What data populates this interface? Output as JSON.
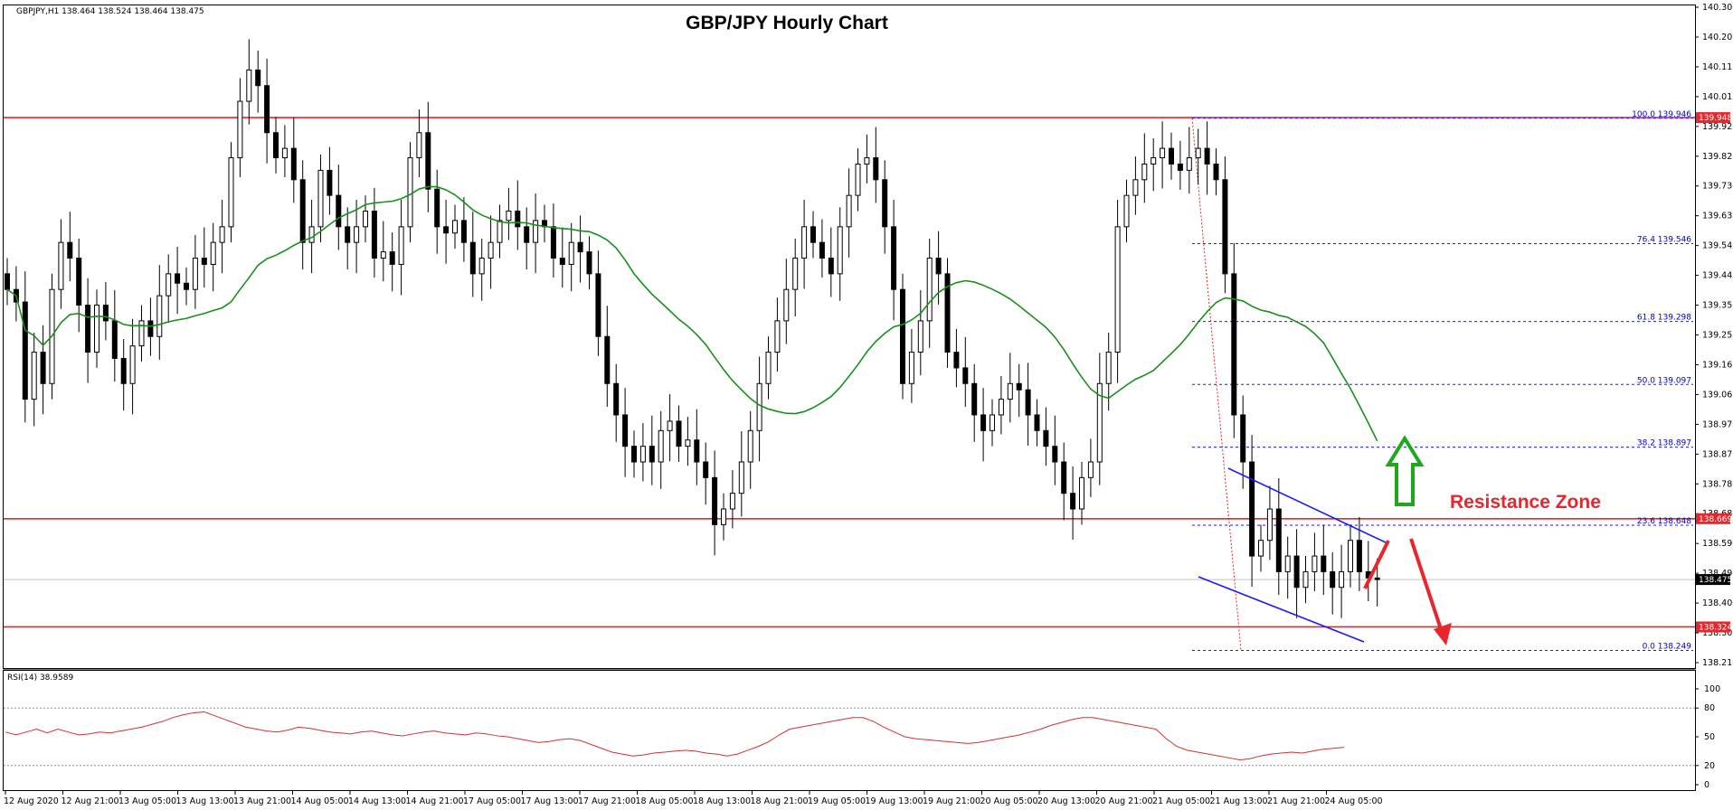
{
  "chart_data": [
    {
      "type": "candlestick",
      "symbol_line": "GBPJPY,H1  138.464 138.524 138.464 138.475",
      "title": "GBP/JPY Hourly Chart",
      "ylim": [
        138.21,
        140.3
      ],
      "y_ticks": [
        "140.300",
        "140.205",
        "140.110",
        "140.015",
        "139.920",
        "139.825",
        "139.730",
        "139.635",
        "139.540",
        "139.445",
        "139.350",
        "139.255",
        "139.160",
        "139.065",
        "138.970",
        "138.875",
        "138.780",
        "138.685",
        "138.590",
        "138.495",
        "138.400",
        "138.305",
        "138.210"
      ],
      "x_ticks": [
        "12 Aug 2020",
        "12 Aug 21:00",
        "13 Aug 05:00",
        "13 Aug 13:00",
        "13 Aug 21:00",
        "14 Aug 05:00",
        "14 Aug 13:00",
        "14 Aug 21:00",
        "17 Aug 05:00",
        "17 Aug 13:00",
        "17 Aug 21:00",
        "18 Aug 05:00",
        "18 Aug 13:00",
        "18 Aug 21:00",
        "19 Aug 05:00",
        "19 Aug 13:00",
        "19 Aug 21:00",
        "20 Aug 05:00",
        "20 Aug 13:00",
        "20 Aug 21:00",
        "21 Aug 05:00",
        "21 Aug 13:00",
        "21 Aug 21:00",
        "24 Aug 05:00"
      ],
      "current_price": "138.475",
      "horizontal_levels": [
        {
          "value": 139.948,
          "label": "139.948"
        },
        {
          "value": 138.669,
          "label": "138.669"
        },
        {
          "value": 138.324,
          "label": "138.324"
        }
      ],
      "fibonacci": [
        {
          "value": 139.946,
          "label": "100.0 139.946"
        },
        {
          "value": 139.546,
          "label": "76.4 139.546"
        },
        {
          "value": 139.298,
          "label": "61.8 139.298"
        },
        {
          "value": 139.097,
          "label": "50.0 139.097"
        },
        {
          "value": 138.897,
          "label": "38.2 138.897"
        },
        {
          "value": 138.648,
          "label": "23.6 138.648"
        },
        {
          "value": 138.249,
          "label": "0.0 138.249"
        }
      ],
      "annotations": [
        "Resistance Zone"
      ],
      "moving_average_color": "#1a8f1a",
      "candles_close": [
        139.4,
        139.36,
        139.05,
        139.2,
        139.1,
        139.4,
        139.55,
        139.5,
        139.35,
        139.2,
        139.35,
        139.3,
        139.18,
        139.1,
        139.22,
        139.3,
        139.25,
        139.38,
        139.45,
        139.42,
        139.4,
        139.5,
        139.48,
        139.55,
        139.6,
        139.82,
        140.0,
        140.1,
        140.05,
        139.9,
        139.82,
        139.85,
        139.75,
        139.55,
        139.6,
        139.78,
        139.7,
        139.6,
        139.55,
        139.6,
        139.65,
        139.5,
        139.52,
        139.48,
        139.6,
        139.82,
        139.9,
        139.72,
        139.6,
        139.58,
        139.62,
        139.55,
        139.45,
        139.5,
        139.55,
        139.62,
        139.65,
        139.6,
        139.55,
        139.62,
        139.6,
        139.5,
        139.48,
        139.55,
        139.52,
        139.45,
        139.25,
        139.1,
        139.0,
        138.9,
        138.85,
        138.9,
        138.85,
        138.95,
        138.98,
        138.9,
        138.92,
        138.85,
        138.8,
        138.65,
        138.7,
        138.75,
        138.85,
        138.95,
        139.1,
        139.2,
        139.3,
        139.4,
        139.5,
        139.6,
        139.55,
        139.5,
        139.45,
        139.6,
        139.7,
        139.8,
        139.82,
        139.75,
        139.6,
        139.4,
        139.1,
        139.2,
        139.3,
        139.5,
        139.45,
        139.2,
        139.15,
        139.1,
        139.0,
        138.95,
        139.0,
        139.05,
        139.1,
        139.08,
        139.0,
        138.95,
        138.9,
        138.85,
        138.75,
        138.7,
        138.8,
        138.85,
        139.1,
        139.2,
        139.6,
        139.7,
        139.75,
        139.8,
        139.82,
        139.85,
        139.8,
        139.78,
        139.82,
        139.85,
        139.8,
        139.75,
        139.45,
        139.0,
        138.85,
        138.55,
        138.6,
        138.7,
        138.5,
        138.55,
        138.45,
        138.5,
        138.55,
        138.5,
        138.45,
        138.5,
        138.6,
        138.5,
        138.48,
        138.475
      ],
      "rsi_label": "RSI(14) 38.9589",
      "rsi_ticks": [
        "100",
        "80",
        "50",
        "20",
        "0"
      ],
      "rsi_color": "#d23232",
      "rsi_values": [
        55,
        52,
        55,
        58,
        54,
        58,
        55,
        52,
        53,
        55,
        54,
        56,
        58,
        60,
        63,
        66,
        70,
        73,
        75,
        76,
        72,
        68,
        64,
        60,
        58,
        56,
        55,
        57,
        60,
        59,
        57,
        55,
        54,
        53,
        55,
        56,
        54,
        52,
        51,
        53,
        55,
        56,
        54,
        53,
        52,
        54,
        53,
        51,
        50,
        48,
        46,
        44,
        45,
        47,
        48,
        46,
        42,
        38,
        34,
        32,
        30,
        31,
        33,
        34,
        35,
        36,
        35,
        33,
        32,
        30,
        32,
        36,
        40,
        45,
        52,
        58,
        60,
        62,
        64,
        66,
        68,
        70,
        70,
        66,
        60,
        55,
        50,
        48,
        47,
        46,
        45,
        44,
        43,
        44,
        46,
        48,
        50,
        52,
        55,
        58,
        62,
        65,
        68,
        70,
        70,
        68,
        66,
        64,
        62,
        60,
        58,
        48,
        40,
        36,
        34,
        32,
        30,
        28,
        26,
        27,
        30,
        32,
        33,
        34,
        33,
        35,
        37,
        38,
        39
      ]
    }
  ]
}
